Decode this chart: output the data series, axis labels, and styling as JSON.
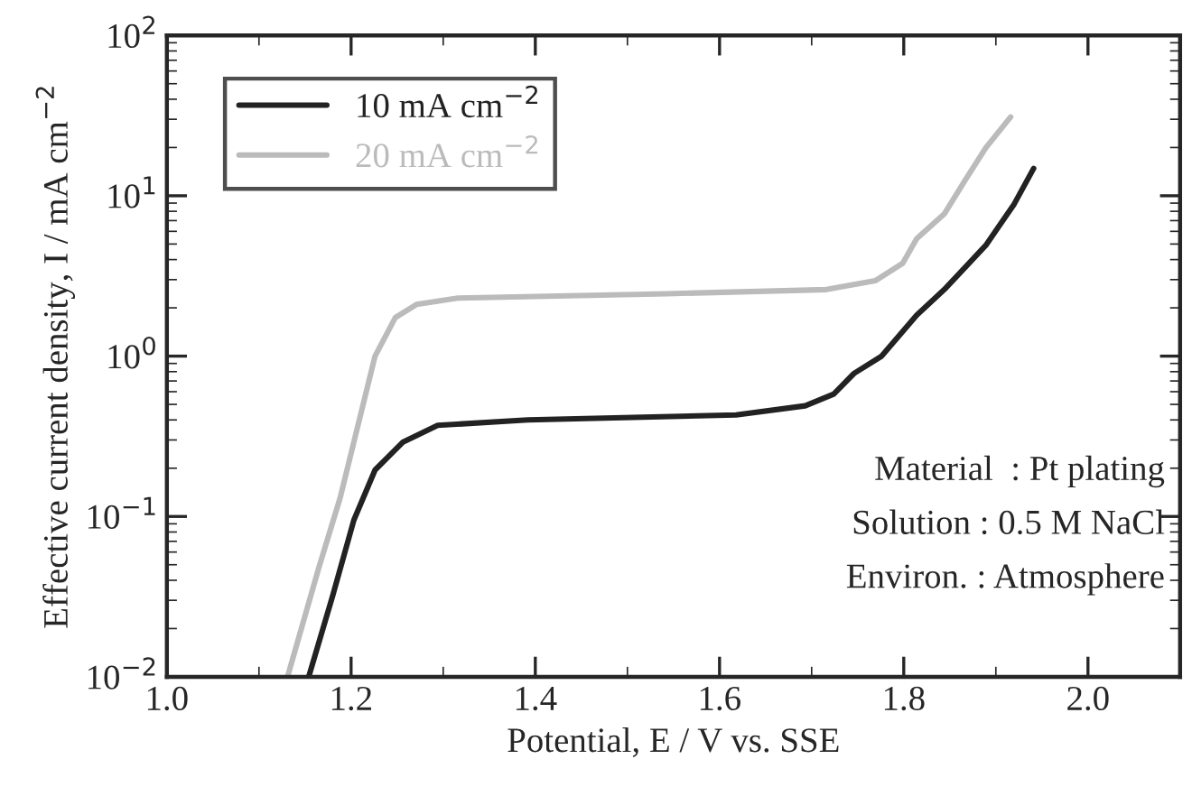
{
  "chart_data": {
    "type": "line",
    "xlabel": "Potential, E / V vs. SSE",
    "ylabel": "Effective current density, I / mA cm$^{−2}$",
    "log": "y",
    "xlim": [
      1.0,
      2.1
    ],
    "xticks": [
      {
        "value": 1.0,
        "label": "1.0"
      },
      1.2,
      1.4,
      1.6,
      1.8,
      {
        "value": 2.0,
        "label": "2.0"
      }
    ],
    "ylim": [
      0.01,
      100
    ],
    "yticks": [
      {
        "value": 0.01,
        "label": "10$^{−2}$"
      },
      {
        "value": 0.1,
        "label": "10$^{−1}$"
      },
      {
        "value": 1,
        "label": "10$^{0}$"
      },
      {
        "value": 10,
        "label": "10$^{1}$"
      },
      {
        "value": 100,
        "label": "10$^{2}$"
      }
    ],
    "grid": false,
    "legend": "top left",
    "marker": "none",
    "line_style": "solid",
    "annotations": [
      "Material  : Pt plating",
      "Solution : 0.5 M NaCl",
      "Environ. : Atmosphere"
    ],
    "series": [
      {
        "name": "10 mA cm$^{−2}$",
        "color": "#222222",
        "x": [
          1.154,
          1.18,
          1.203,
          1.226,
          1.256,
          1.294,
          1.392,
          1.618,
          1.693,
          1.724,
          1.746,
          1.776,
          1.814,
          1.844,
          1.889,
          1.92,
          1.941
        ],
        "values": [
          0.01,
          0.032,
          0.095,
          0.195,
          0.29,
          0.37,
          0.4,
          0.43,
          0.49,
          0.58,
          0.78,
          1.0,
          1.8,
          2.6,
          4.9,
          8.9,
          14.8
        ]
      },
      {
        "name": "20 mA cm$^{−2}$",
        "color": "#bbbbbb",
        "x": [
          1.131,
          1.165,
          1.188,
          1.226,
          1.248,
          1.271,
          1.316,
          1.543,
          1.716,
          1.769,
          1.799,
          1.814,
          1.844,
          1.867,
          1.889,
          1.916
        ],
        "values": [
          0.01,
          0.048,
          0.13,
          1.0,
          1.74,
          2.1,
          2.3,
          2.45,
          2.6,
          2.95,
          3.8,
          5.4,
          7.7,
          12.6,
          19.9,
          31
        ]
      }
    ]
  }
}
